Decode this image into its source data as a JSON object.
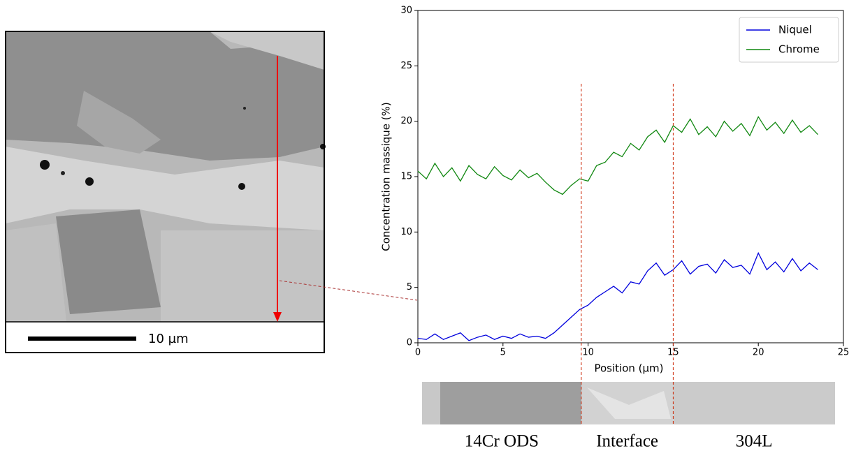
{
  "micrograph": {
    "scale_label": "10 µm"
  },
  "chart_data": {
    "type": "line",
    "x_label": "Position (µm)",
    "y_label": "Concentration massique (%)",
    "x": [
      0,
      0.5,
      1,
      1.5,
      2,
      2.5,
      3,
      3.5,
      4,
      4.5,
      5,
      5.5,
      6,
      6.5,
      7,
      7.5,
      8,
      8.5,
      9,
      9.5,
      10,
      10.5,
      11,
      11.5,
      12,
      12.5,
      13,
      13.5,
      14,
      14.5,
      15,
      15.5,
      16,
      16.5,
      17,
      17.5,
      18,
      18.5,
      19,
      19.5,
      20,
      20.5,
      21,
      21.5,
      22,
      22.5,
      23,
      23.5
    ],
    "series": [
      {
        "name": "Niquel",
        "color": "#0000dd",
        "values": [
          0.4,
          0.3,
          0.8,
          0.3,
          0.6,
          0.9,
          0.2,
          0.5,
          0.7,
          0.3,
          0.6,
          0.4,
          0.8,
          0.5,
          0.6,
          0.4,
          0.9,
          1.6,
          2.3,
          3.0,
          3.4,
          4.1,
          4.6,
          5.1,
          4.5,
          5.5,
          5.3,
          6.5,
          7.2,
          6.1,
          6.6,
          7.4,
          6.2,
          6.9,
          7.1,
          6.3,
          7.5,
          6.8,
          7.0,
          6.2,
          8.1,
          6.6,
          7.3,
          6.4,
          7.6,
          6.5,
          7.2,
          6.6
        ]
      },
      {
        "name": "Chrome",
        "color": "#118811",
        "values": [
          15.5,
          14.8,
          16.2,
          15.0,
          15.8,
          14.6,
          16.0,
          15.2,
          14.8,
          15.9,
          15.1,
          14.7,
          15.6,
          14.9,
          15.3,
          14.5,
          13.8,
          13.4,
          14.2,
          14.8,
          14.6,
          16.0,
          16.3,
          17.2,
          16.8,
          18.0,
          17.4,
          18.6,
          19.2,
          18.1,
          19.6,
          19.0,
          20.2,
          18.8,
          19.5,
          18.6,
          20.0,
          19.1,
          19.8,
          18.7,
          20.4,
          19.2,
          19.9,
          18.9,
          20.1,
          19.0,
          19.6,
          18.8
        ]
      }
    ],
    "vlines": [
      9.6,
      15
    ],
    "vline_color": "#cc2200",
    "xlim": [
      0,
      25
    ],
    "xticks": [
      0,
      5,
      10,
      15,
      20,
      25
    ],
    "ylim": [
      0,
      30
    ],
    "yticks": [
      0,
      5,
      10,
      15,
      20,
      25,
      30
    ],
    "legend": "upper right",
    "annotations": [
      "14Cr ODS",
      "Interface",
      "304L"
    ]
  }
}
